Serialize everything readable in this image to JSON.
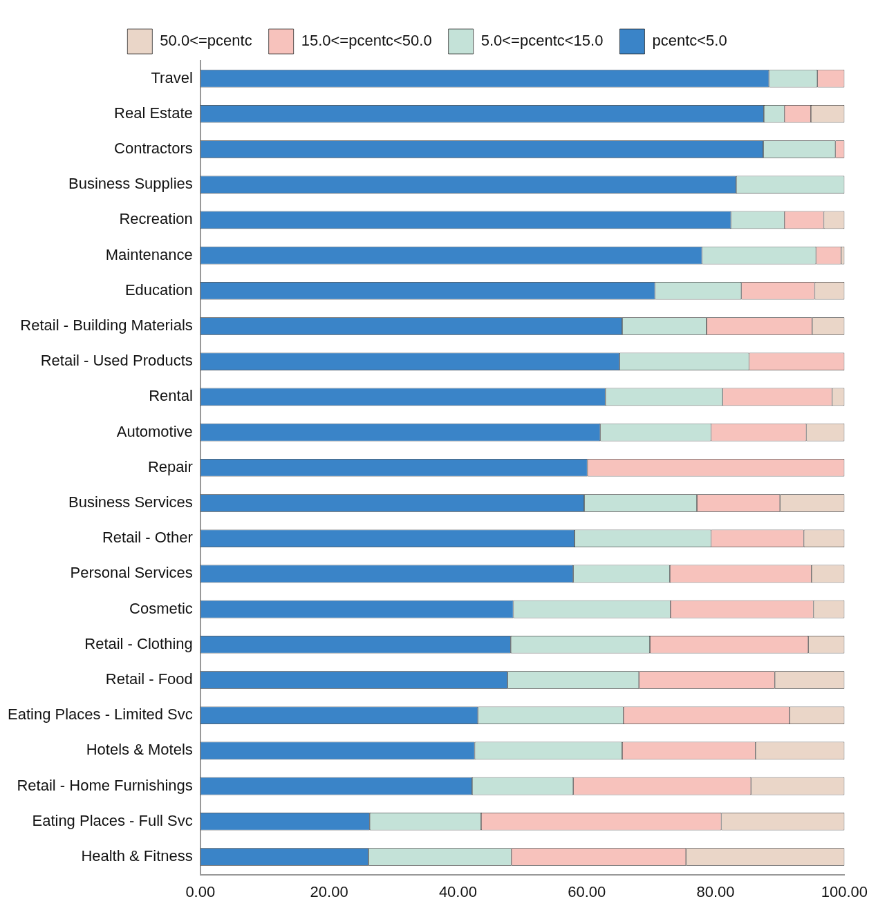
{
  "chart_data": {
    "type": "bar",
    "orientation": "horizontal",
    "stacked": true,
    "legend": "top",
    "grid": false,
    "categories": [
      "Travel",
      "Real Estate",
      "Contractors",
      "Business Supplies",
      "Recreation",
      "Maintenance",
      "Education",
      "Retail - Building Materials",
      "Retail - Used Products",
      "Rental",
      "Automotive",
      "Repair",
      "Business Services",
      "Retail - Other",
      "Personal Services",
      "Cosmetic",
      "Retail - Clothing",
      "Retail - Food",
      "Eating Places - Limited Svc",
      "Hotels & Motels",
      "Retail - Home Furnishings",
      "Eating Places - Full Svc",
      "Health & Fitness"
    ],
    "series": [
      {
        "name": "pcentc<5.0",
        "color": "#3a84c8",
        "values": [
          88.3,
          87.5,
          87.4,
          83.2,
          82.4,
          77.9,
          70.6,
          65.5,
          65.1,
          62.9,
          62.1,
          60.1,
          59.6,
          58.1,
          57.9,
          48.6,
          48.2,
          47.7,
          43.1,
          42.6,
          42.2,
          26.3,
          26.1
        ]
      },
      {
        "name": "5.0<=pcentc<15.0",
        "color": "#c4e2d8",
        "values": [
          7.5,
          3.2,
          11.2,
          16.8,
          8.3,
          17.7,
          13.4,
          13.1,
          20.1,
          18.2,
          17.2,
          0,
          17.5,
          21.2,
          15.0,
          24.4,
          21.6,
          20.4,
          22.6,
          22.9,
          15.7,
          17.3,
          22.2
        ]
      },
      {
        "name": "15.0<=pcentc<50.0",
        "color": "#f7c2bc",
        "values": [
          4.2,
          4.1,
          1.4,
          0,
          6.1,
          3.9,
          11.4,
          16.4,
          14.8,
          17.0,
          14.8,
          39.9,
          12.9,
          14.4,
          22.0,
          22.2,
          24.6,
          21.1,
          25.8,
          20.7,
          27.6,
          37.3,
          27.1
        ]
      },
      {
        "name": "50.0<=pcentc",
        "color": "#ead6c8",
        "values": [
          0,
          5.2,
          0,
          0,
          3.2,
          0.5,
          4.6,
          5.0,
          0,
          1.9,
          5.9,
          0,
          10.0,
          6.3,
          5.1,
          4.8,
          5.6,
          10.8,
          8.5,
          13.8,
          14.5,
          19.1,
          24.6
        ]
      }
    ],
    "xlim": [
      0,
      100
    ],
    "xticks": [
      {
        "value": 0,
        "label": "0.00"
      },
      {
        "value": 20,
        "label": "20.00"
      },
      {
        "value": 40,
        "label": "40.00"
      },
      {
        "value": 60,
        "label": "60.00"
      },
      {
        "value": 80,
        "label": "80.00"
      },
      {
        "value": 100,
        "label": "100.00"
      }
    ]
  }
}
